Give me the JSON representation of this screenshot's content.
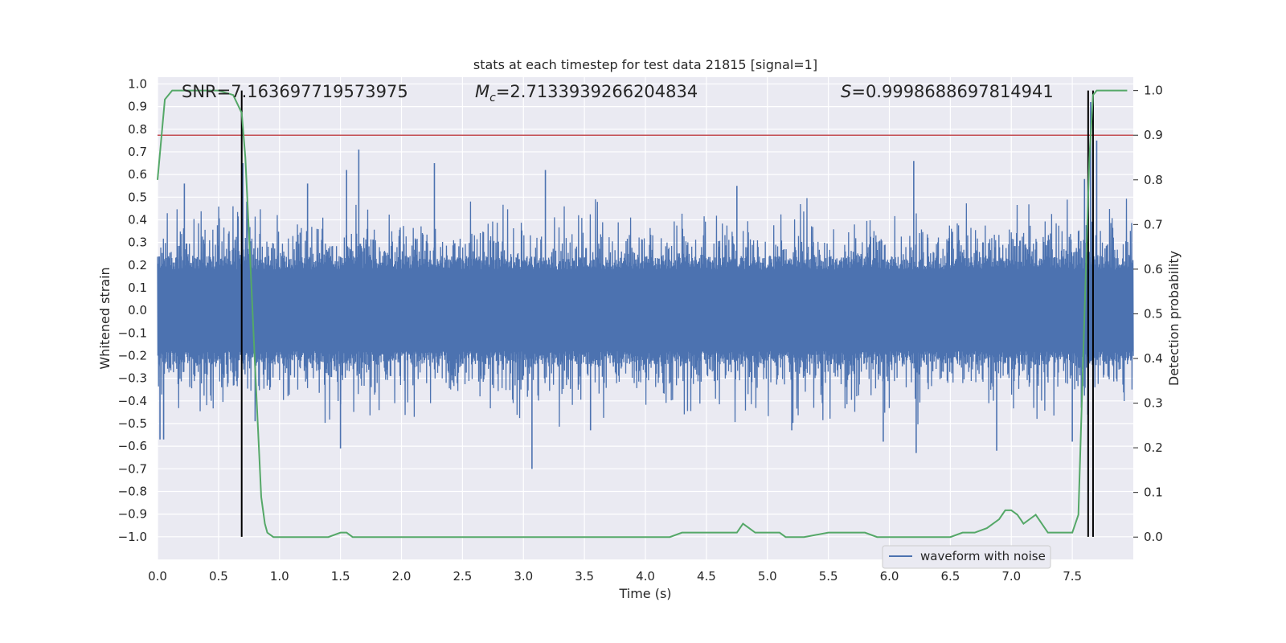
{
  "chart_data": {
    "type": "line",
    "title": "stats at each timestep for test data 21815 [signal=1]",
    "xlabel": "Time (s)",
    "ylabel_left": "Whitened strain",
    "ylabel_right": "Detection probability",
    "xlim": [
      0.0,
      8.0
    ],
    "ylim_left": [
      -1.1,
      1.03
    ],
    "ylim_right": [
      -0.05,
      1.03
    ],
    "x_ticks": [
      "0.0",
      "0.5",
      "1.0",
      "1.5",
      "2.0",
      "2.5",
      "3.0",
      "3.5",
      "4.0",
      "4.5",
      "5.0",
      "5.5",
      "6.0",
      "6.5",
      "7.0",
      "7.5"
    ],
    "y_left_ticks": [
      "1.0",
      "0.9",
      "0.8",
      "0.7",
      "0.6",
      "0.5",
      "0.4",
      "0.3",
      "0.2",
      "0.1",
      "0.0",
      "−0.1",
      "−0.2",
      "−0.3",
      "−0.4",
      "−0.5",
      "−0.6",
      "−0.7",
      "−0.8",
      "−0.9",
      "−1.0"
    ],
    "y_right_ticks": [
      "0.0",
      "0.1",
      "0.2",
      "0.3",
      "0.4",
      "0.5",
      "0.6",
      "0.7",
      "0.8",
      "0.9",
      "1.0"
    ],
    "annotations": {
      "snr": "SNR=7.163697719573975",
      "mc_prefix": "M",
      "mc_sub": "c",
      "mc_value": "=2.7133939266204834",
      "s_prefix": "S",
      "s_value": "=0.9998688697814941"
    },
    "grid": true,
    "legend": {
      "placement": "lower-right",
      "entries": [
        {
          "name": "waveform with noise",
          "color": "#4c72b0"
        }
      ]
    },
    "colors": {
      "waveform": "#4c72b0",
      "probability": "#55a868",
      "threshold": "#c44e52",
      "markers": "#000000",
      "background": "#eaeaf2"
    },
    "waveform": {
      "duration": 8.0,
      "core_amplitude": 0.18,
      "peaks": [
        {
          "x": 0.02,
          "y": -0.57
        },
        {
          "x": 0.05,
          "y": -0.57
        },
        {
          "x": 0.22,
          "y": 0.56
        },
        {
          "x": 0.7,
          "y": 0.65
        },
        {
          "x": 0.8,
          "y": -0.49
        },
        {
          "x": 1.23,
          "y": 0.56
        },
        {
          "x": 1.5,
          "y": -0.61
        },
        {
          "x": 1.55,
          "y": 0.62
        },
        {
          "x": 1.65,
          "y": 0.71
        },
        {
          "x": 2.27,
          "y": 0.65
        },
        {
          "x": 3.07,
          "y": -0.7
        },
        {
          "x": 3.18,
          "y": 0.62
        },
        {
          "x": 3.55,
          "y": -0.53
        },
        {
          "x": 4.75,
          "y": 0.55
        },
        {
          "x": 5.2,
          "y": -0.53
        },
        {
          "x": 5.95,
          "y": -0.58
        },
        {
          "x": 6.2,
          "y": 0.66
        },
        {
          "x": 6.22,
          "y": -0.63
        },
        {
          "x": 6.88,
          "y": -0.62
        },
        {
          "x": 7.5,
          "y": -0.58
        },
        {
          "x": 7.6,
          "y": 0.58
        },
        {
          "x": 7.63,
          "y": -0.8
        },
        {
          "x": 7.65,
          "y": 0.92
        },
        {
          "x": 7.67,
          "y": -1.0
        },
        {
          "x": 7.7,
          "y": 0.75
        }
      ]
    },
    "probability": {
      "x": [
        0.0,
        0.06,
        0.12,
        0.3,
        0.5,
        0.62,
        0.69,
        0.72,
        0.76,
        0.8,
        0.85,
        0.88,
        0.9,
        0.95,
        1.0,
        1.2,
        1.4,
        1.5,
        1.55,
        1.6,
        1.7,
        1.8,
        1.9,
        2.0,
        2.5,
        3.0,
        3.4,
        3.5,
        3.6,
        3.8,
        4.0,
        4.2,
        4.3,
        4.35,
        4.45,
        4.5,
        4.55,
        4.65,
        4.7,
        4.75,
        4.8,
        4.85,
        4.9,
        4.95,
        5.0,
        5.05,
        5.1,
        5.15,
        5.2,
        5.3,
        5.5,
        5.6,
        5.7,
        5.8,
        5.9,
        6.0,
        6.2,
        6.4,
        6.5,
        6.6,
        6.7,
        6.8,
        6.85,
        6.9,
        6.95,
        7.0,
        7.05,
        7.1,
        7.15,
        7.2,
        7.25,
        7.3,
        7.35,
        7.4,
        7.45,
        7.5,
        7.55,
        7.6,
        7.64,
        7.67,
        7.7,
        7.75,
        7.85,
        7.95
      ],
      "y": [
        0.8,
        0.98,
        1.0,
        1.0,
        1.0,
        0.99,
        0.95,
        0.85,
        0.62,
        0.38,
        0.09,
        0.03,
        0.01,
        0.0,
        0.0,
        0.0,
        0.0,
        0.01,
        0.01,
        0.0,
        0.0,
        0.0,
        0.0,
        0.0,
        0.0,
        0.0,
        0.0,
        0.0,
        0.0,
        0.0,
        0.0,
        0.0,
        0.01,
        0.01,
        0.01,
        0.01,
        0.01,
        0.01,
        0.01,
        0.01,
        0.03,
        0.02,
        0.01,
        0.01,
        0.01,
        0.01,
        0.01,
        0.0,
        0.0,
        0.0,
        0.01,
        0.01,
        0.01,
        0.01,
        0.0,
        0.0,
        0.0,
        0.0,
        0.0,
        0.01,
        0.01,
        0.02,
        0.03,
        0.04,
        0.06,
        0.06,
        0.05,
        0.03,
        0.04,
        0.05,
        0.03,
        0.01,
        0.01,
        0.01,
        0.01,
        0.01,
        0.05,
        0.5,
        0.85,
        0.99,
        1.0,
        1.0,
        1.0,
        1.0
      ]
    },
    "threshold": {
      "y": 0.9
    },
    "markers": [
      0.69,
      7.63,
      7.67
    ]
  }
}
